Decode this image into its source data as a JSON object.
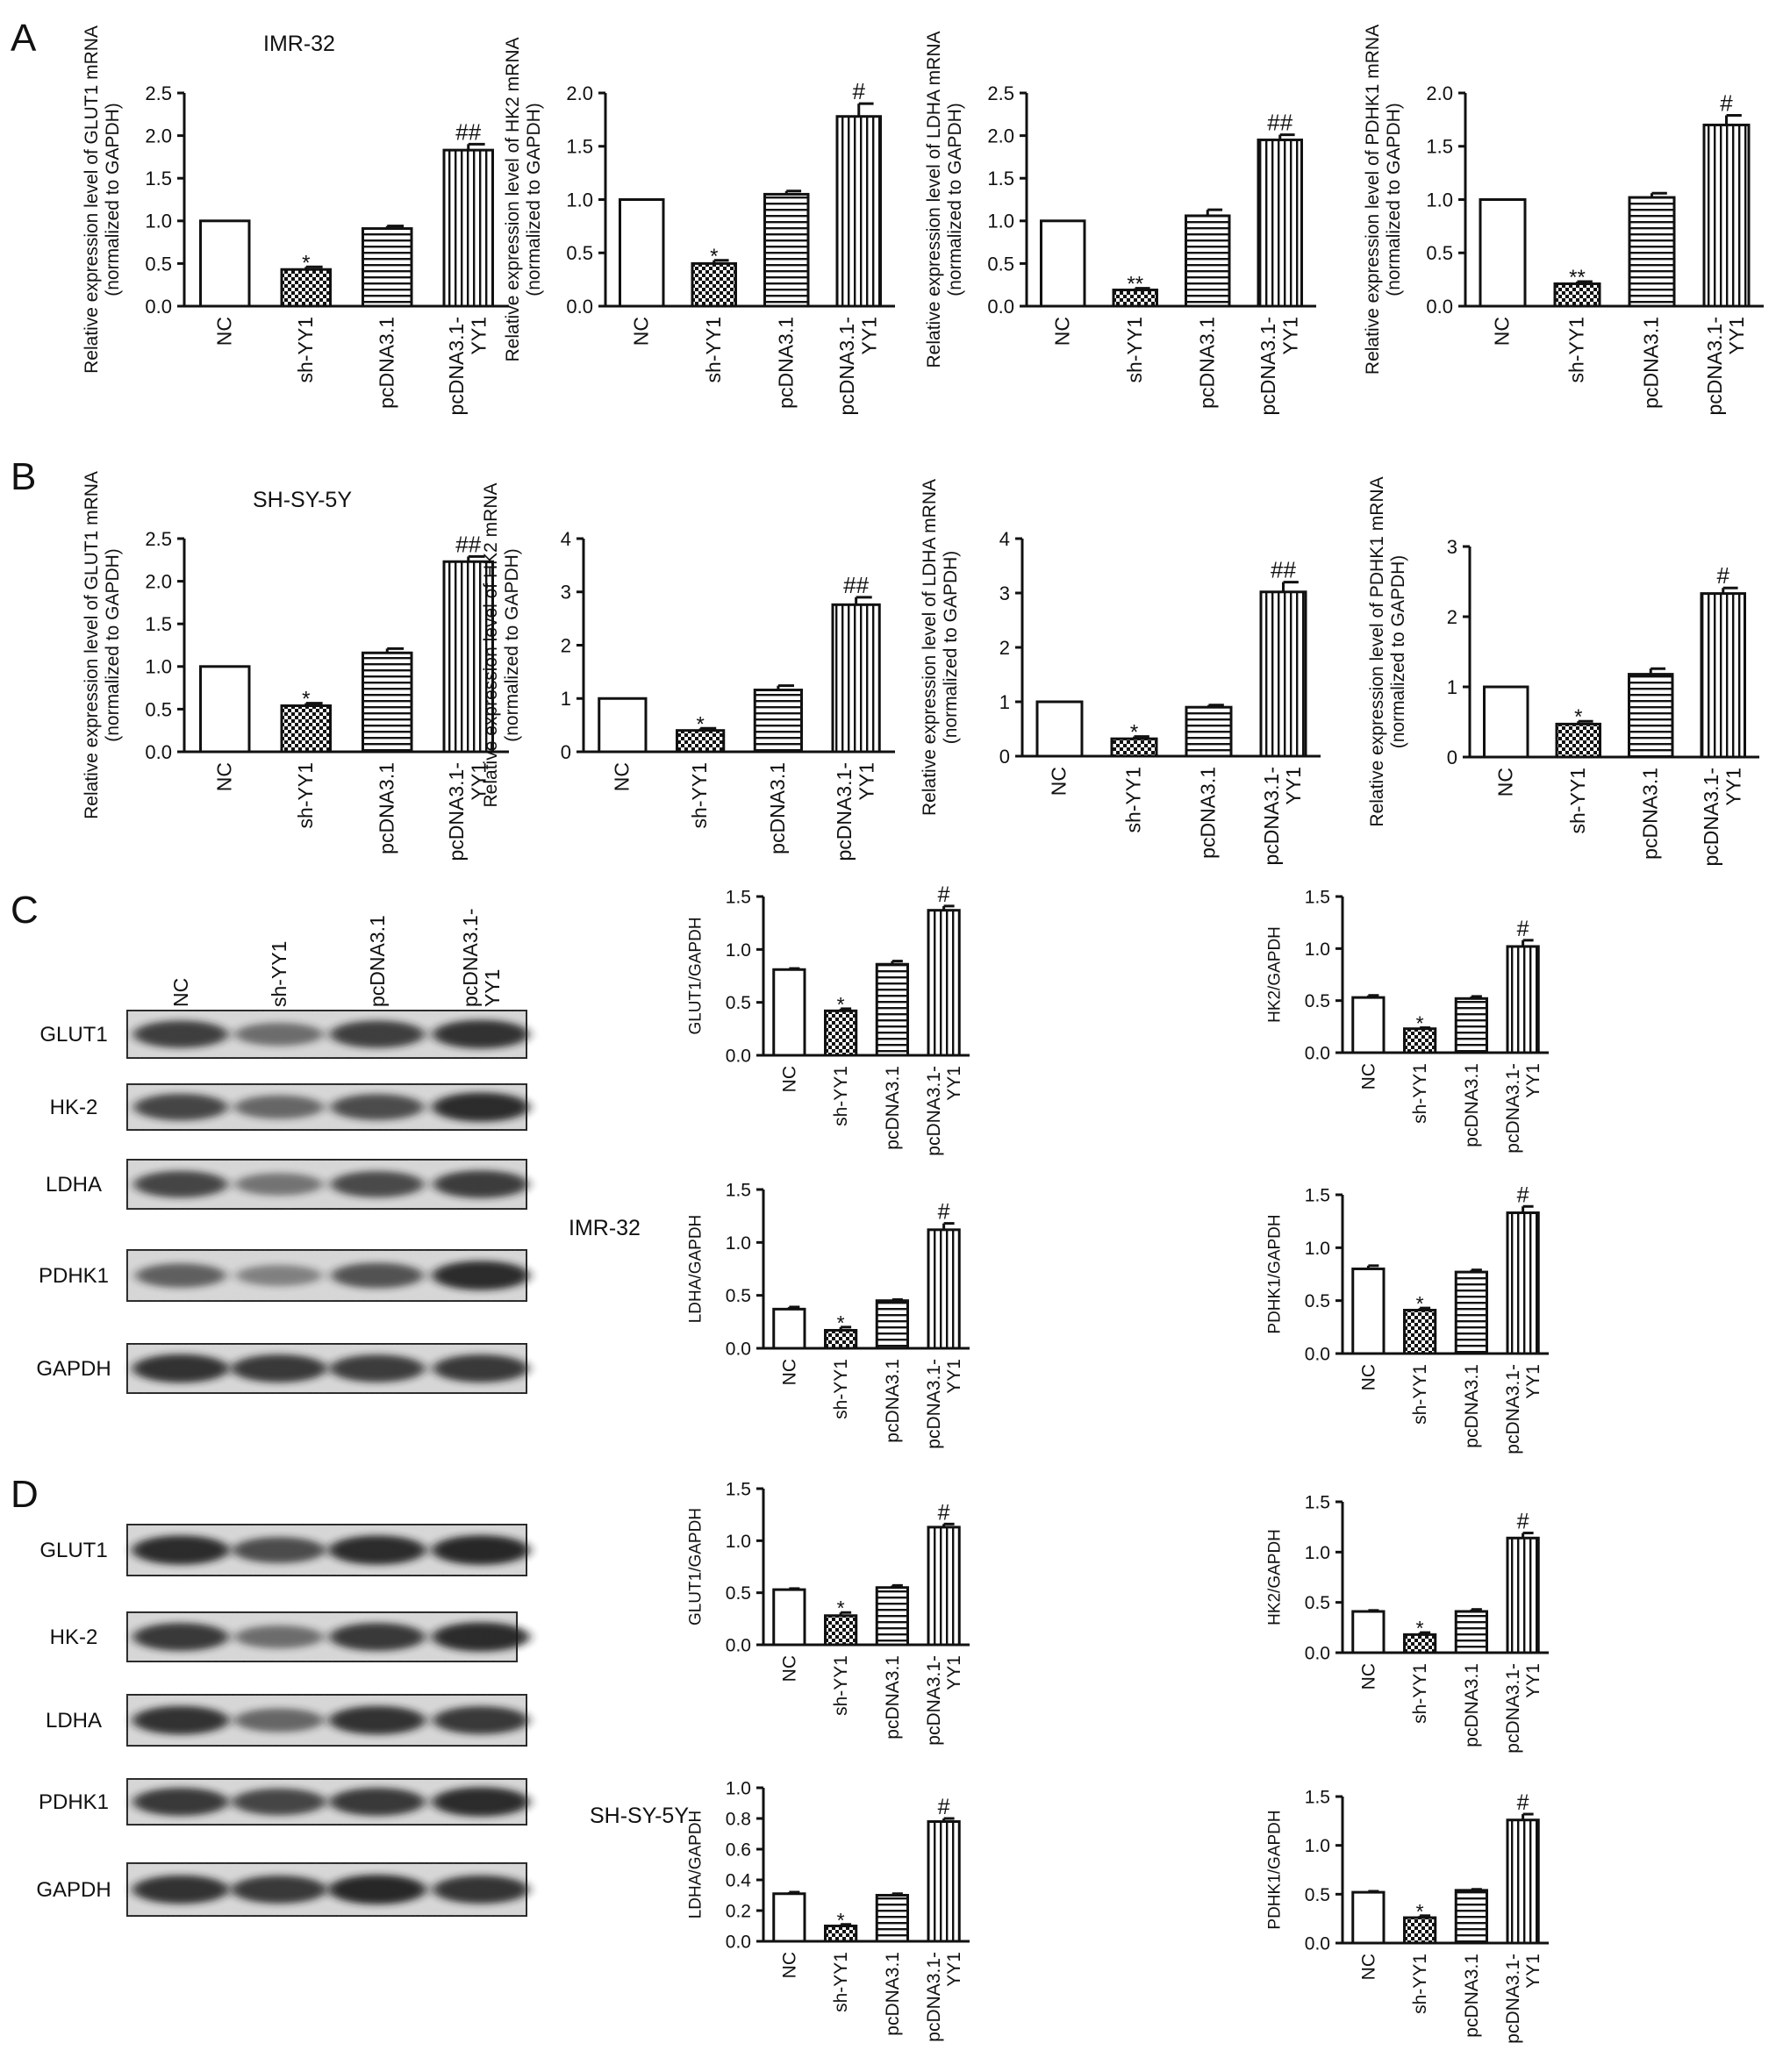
{
  "panel_labels": [
    "A",
    "B",
    "C",
    "D"
  ],
  "cell_lines": [
    "IMR-32",
    "SH-SY-5Y",
    "IMR-32",
    "SH-SY-5Y"
  ],
  "blot_lane_labels": [
    "NC",
    "sh-YY1",
    "pcDNA3.1",
    "pcDNA3.1-\nYY1"
  ],
  "blot_band_labels": [
    "GLUT1",
    "HK-2",
    "LDHA",
    "PDHK1",
    "GAPDH"
  ],
  "patterns": [
    "white",
    "checkered",
    "horizontal-stripes",
    "vertical-stripes"
  ],
  "chart_data": [
    {
      "panel": "A",
      "type": "bar",
      "ylabel": "Relative expression level of GLUT1 mRNA\n(normalized to GAPDH)",
      "categories": [
        "NC",
        "sh-YY1",
        "pcDNA3.1",
        "pcDNA3.1-\nYY1"
      ],
      "values": [
        1.0,
        0.43,
        0.91,
        1.83
      ],
      "errors": [
        0,
        0.03,
        0.03,
        0.07
      ],
      "annotations": [
        "",
        "*",
        "",
        "##"
      ],
      "ylim": [
        0,
        2.5
      ],
      "yticks": [
        "0.0",
        "0.5",
        "1.0",
        "1.5",
        "2.0",
        "2.5"
      ]
    },
    {
      "panel": "A",
      "type": "bar",
      "ylabel": "Relative expression level of HK2 mRNA\n(normalized to GAPDH)",
      "categories": [
        "NC",
        "sh-YY1",
        "pcDNA3.1",
        "pcDNA3.1-\nYY1"
      ],
      "values": [
        1.0,
        0.4,
        1.05,
        1.78
      ],
      "errors": [
        0,
        0.03,
        0.03,
        0.12
      ],
      "annotations": [
        "",
        "*",
        "",
        "#"
      ],
      "ylim": [
        0,
        2.0
      ],
      "yticks": [
        "0.0",
        "0.5",
        "1.0",
        "1.5",
        "2.0"
      ]
    },
    {
      "panel": "A",
      "type": "bar",
      "ylabel": "Relative expression level of LDHA mRNA\n(normalized to GAPDH)",
      "categories": [
        "NC",
        "sh-YY1",
        "pcDNA3.1",
        "pcDNA3.1-\nYY1"
      ],
      "values": [
        1.0,
        0.19,
        1.06,
        1.95
      ],
      "errors": [
        0,
        0.02,
        0.07,
        0.06
      ],
      "annotations": [
        "",
        "**",
        "",
        "##"
      ],
      "ylim": [
        0,
        2.5
      ],
      "yticks": [
        "0.0",
        "0.5",
        "1.0",
        "1.5",
        "2.0",
        "2.5"
      ]
    },
    {
      "panel": "A",
      "type": "bar",
      "ylabel": "Relative expression level of PDHK1 mRNA\n(normalized to GAPDH)",
      "categories": [
        "NC",
        "sh-YY1",
        "pcDNA3.1",
        "pcDNA3.1-\nYY1"
      ],
      "values": [
        1.0,
        0.21,
        1.02,
        1.7
      ],
      "errors": [
        0,
        0.02,
        0.04,
        0.09
      ],
      "annotations": [
        "",
        "**",
        "",
        "#"
      ],
      "ylim": [
        0,
        2.0
      ],
      "yticks": [
        "0.0",
        "0.5",
        "1.0",
        "1.5",
        "2.0"
      ]
    },
    {
      "panel": "B",
      "type": "bar",
      "ylabel": "Relative expression level of GLUT1 mRNA\n(normalized to GAPDH)",
      "categories": [
        "NC",
        "sh-YY1",
        "pcDNA3.1",
        "pcDNA3.1-\nYY1"
      ],
      "values": [
        1.0,
        0.54,
        1.16,
        2.23
      ],
      "errors": [
        0,
        0.03,
        0.05,
        0.06
      ],
      "annotations": [
        "",
        "*",
        "",
        "##"
      ],
      "ylim": [
        0,
        2.5
      ],
      "yticks": [
        "0.0",
        "0.5",
        "1.0",
        "1.5",
        "2.0",
        "2.5"
      ]
    },
    {
      "panel": "B",
      "type": "bar",
      "ylabel": "Relative expression level of HK2 mRNA\n(normalized to GAPDH)",
      "categories": [
        "NC",
        "sh-YY1",
        "pcDNA3.1",
        "pcDNA3.1-\nYY1"
      ],
      "values": [
        1.0,
        0.4,
        1.16,
        2.76
      ],
      "errors": [
        0,
        0.04,
        0.08,
        0.14
      ],
      "annotations": [
        "",
        "*",
        "",
        "##"
      ],
      "ylim": [
        0,
        4
      ],
      "yticks": [
        "0",
        "1",
        "2",
        "3",
        "4"
      ]
    },
    {
      "panel": "B",
      "type": "bar",
      "ylabel": "Relative expression level of LDHA mRNA\n(normalized to GAPDH)",
      "categories": [
        "NC",
        "sh-YY1",
        "pcDNA3.1",
        "pcDNA3.1-\nYY1"
      ],
      "values": [
        1.0,
        0.32,
        0.9,
        3.02
      ],
      "errors": [
        0,
        0.04,
        0.04,
        0.18
      ],
      "annotations": [
        "",
        "*",
        "",
        "##"
      ],
      "ylim": [
        0,
        4
      ],
      "yticks": [
        "0",
        "1",
        "2",
        "3",
        "4"
      ]
    },
    {
      "panel": "B",
      "type": "bar",
      "ylabel": "Relative expression level of PDHK1 mRNA\n(normalized to GAPDH)",
      "categories": [
        "NC",
        "sh-YY1",
        "pcDNA3.1",
        "pcDNA3.1-\nYY1"
      ],
      "values": [
        1.0,
        0.47,
        1.18,
        2.33
      ],
      "errors": [
        0,
        0.04,
        0.08,
        0.08
      ],
      "annotations": [
        "",
        "*",
        "",
        "#"
      ],
      "ylim": [
        0,
        3
      ],
      "yticks": [
        "0",
        "1",
        "2",
        "3"
      ]
    },
    {
      "panel": "C",
      "type": "bar",
      "ylabel": "GLUT1/GAPDH",
      "categories": [
        "NC",
        "sh-YY1",
        "pcDNA3.1",
        "pcDNA3.1-\nYY1"
      ],
      "values": [
        0.81,
        0.42,
        0.86,
        1.37
      ],
      "errors": [
        0.01,
        0.02,
        0.03,
        0.04
      ],
      "annotations": [
        "",
        "*",
        "",
        "#"
      ],
      "ylim": [
        0,
        1.5
      ],
      "yticks": [
        "0.0",
        "0.5",
        "1.0",
        "1.5"
      ]
    },
    {
      "panel": "C",
      "type": "bar",
      "ylabel": "HK2/GAPDH",
      "categories": [
        "NC",
        "sh-YY1",
        "pcDNA3.1",
        "pcDNA3.1-\nYY1"
      ],
      "values": [
        0.53,
        0.23,
        0.52,
        1.02
      ],
      "errors": [
        0.02,
        0.01,
        0.02,
        0.06
      ],
      "annotations": [
        "",
        "*",
        "",
        "#"
      ],
      "ylim": [
        0,
        1.5
      ],
      "yticks": [
        "0.0",
        "0.5",
        "1.0",
        "1.5"
      ]
    },
    {
      "panel": "C",
      "type": "bar",
      "ylabel": "LDHA/GAPDH",
      "categories": [
        "NC",
        "sh-YY1",
        "pcDNA3.1",
        "pcDNA3.1-\nYY1"
      ],
      "values": [
        0.37,
        0.17,
        0.45,
        1.12
      ],
      "errors": [
        0.02,
        0.03,
        0.01,
        0.06
      ],
      "annotations": [
        "",
        "*",
        "",
        "#"
      ],
      "ylim": [
        0,
        1.5
      ],
      "yticks": [
        "0.0",
        "0.5",
        "1.0",
        "1.5"
      ]
    },
    {
      "panel": "C",
      "type": "bar",
      "ylabel": "PDHK1/GAPDH",
      "categories": [
        "NC",
        "sh-YY1",
        "pcDNA3.1",
        "pcDNA3.1-\nYY1"
      ],
      "values": [
        0.8,
        0.41,
        0.77,
        1.33
      ],
      "errors": [
        0.03,
        0.02,
        0.02,
        0.06
      ],
      "annotations": [
        "",
        "*",
        "",
        "#"
      ],
      "ylim": [
        0,
        1.5
      ],
      "yticks": [
        "0.0",
        "0.5",
        "1.0",
        "1.5"
      ]
    },
    {
      "panel": "D",
      "type": "bar",
      "ylabel": "GLUT1/GAPDH",
      "categories": [
        "NC",
        "sh-YY1",
        "pcDNA3.1",
        "pcDNA3.1-\nYY1"
      ],
      "values": [
        0.53,
        0.28,
        0.55,
        1.13
      ],
      "errors": [
        0.01,
        0.03,
        0.02,
        0.03
      ],
      "annotations": [
        "",
        "*",
        "",
        "#"
      ],
      "ylim": [
        0,
        1.5
      ],
      "yticks": [
        "0.0",
        "0.5",
        "1.0",
        "1.5"
      ]
    },
    {
      "panel": "D",
      "type": "bar",
      "ylabel": "HK2/GAPDH",
      "categories": [
        "NC",
        "sh-YY1",
        "pcDNA3.1",
        "pcDNA3.1-\nYY1"
      ],
      "values": [
        0.41,
        0.18,
        0.41,
        1.14
      ],
      "errors": [
        0.01,
        0.02,
        0.02,
        0.05
      ],
      "annotations": [
        "",
        "*",
        "",
        "#"
      ],
      "ylim": [
        0,
        1.5
      ],
      "yticks": [
        "0.0",
        "0.5",
        "1.0",
        "1.5"
      ]
    },
    {
      "panel": "D",
      "type": "bar",
      "ylabel": "LDHA/GAPDH",
      "categories": [
        "NC",
        "sh-YY1",
        "pcDNA3.1",
        "pcDNA3.1-\nYY1"
      ],
      "values": [
        0.31,
        0.1,
        0.3,
        0.78
      ],
      "errors": [
        0.01,
        0.01,
        0.01,
        0.02
      ],
      "annotations": [
        "",
        "*",
        "",
        "#"
      ],
      "ylim": [
        0,
        1.0
      ],
      "yticks": [
        "0.0",
        "0.2",
        "0.4",
        "0.6",
        "0.8",
        "1.0"
      ]
    },
    {
      "panel": "D",
      "type": "bar",
      "ylabel": "PDHK1/GAPDH",
      "categories": [
        "NC",
        "sh-YY1",
        "pcDNA3.1",
        "pcDNA3.1-\nYY1"
      ],
      "values": [
        0.52,
        0.26,
        0.54,
        1.26
      ],
      "errors": [
        0.01,
        0.02,
        0.01,
        0.06
      ],
      "annotations": [
        "",
        "*",
        "",
        "#"
      ],
      "ylim": [
        0,
        1.5
      ],
      "yticks": [
        "0.0",
        "0.5",
        "1.0",
        "1.5"
      ]
    }
  ]
}
